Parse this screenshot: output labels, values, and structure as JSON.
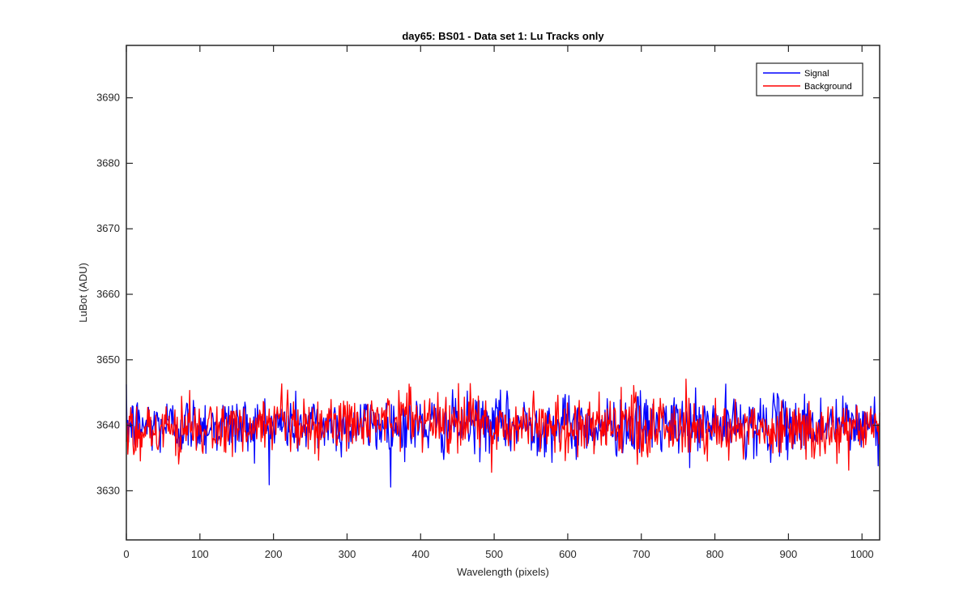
{
  "chart_data": {
    "type": "line",
    "title": "day65: BS01 - Data set 1: Lu Tracks only",
    "xlabel": "Wavelength (pixels)",
    "ylabel": "LuBot (ADU)",
    "xlim": [
      0,
      1024
    ],
    "ylim": [
      3622.5,
      3698
    ],
    "xticks": [
      0,
      100,
      200,
      300,
      400,
      500,
      600,
      700,
      800,
      900,
      1000
    ],
    "yticks": [
      3630,
      3640,
      3650,
      3660,
      3670,
      3680,
      3690
    ],
    "grid": false,
    "legend_position": "top-right",
    "series": [
      {
        "name": "Signal",
        "color": "#0000ff",
        "baseline": 3640,
        "noise_amplitude": 3,
        "n_points": 1024
      },
      {
        "name": "Background",
        "color": "#ff0000",
        "x": [
          0,
          100,
          200,
          300,
          350,
          390,
          400,
          450,
          500,
          600,
          700,
          800,
          900,
          1000,
          1024
        ],
        "baseline": [
          3639.5,
          3639.3,
          3639.5,
          3640.0,
          3640.8,
          3641.5,
          3641.2,
          3640.5,
          3640.0,
          3640.0,
          3639.8,
          3639.6,
          3639.5,
          3639.3,
          3639.3
        ],
        "noise_amplitude": 3,
        "max": 3648.1,
        "min": 3632.5,
        "n_points": 1024
      }
    ]
  }
}
